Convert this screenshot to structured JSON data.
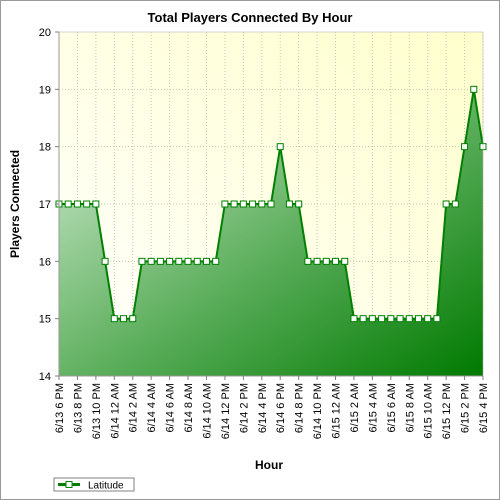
{
  "chart_data": {
    "type": "area",
    "title": "Total Players Connected By Hour",
    "xlabel": "Hour",
    "ylabel": "Players Connected",
    "ylim": [
      14,
      20
    ],
    "yticks": [
      "14",
      "15",
      "16",
      "17",
      "18",
      "19",
      "20"
    ],
    "tick_labels": [
      "6/13 6 PM",
      "6/13 8 PM",
      "6/13 10 PM",
      "6/14 12 AM",
      "6/14 2 AM",
      "6/14 4 AM",
      "6/14 6 AM",
      "6/14 8 AM",
      "6/14 10 AM",
      "6/14 12 PM",
      "6/14 2 PM",
      "6/14 4 PM",
      "6/14 6 PM",
      "6/14 8 PM",
      "6/14 10 PM",
      "6/15 12 AM",
      "6/15 2 AM",
      "6/15 4 AM",
      "6/15 6 AM",
      "6/15 8 AM",
      "6/15 10 AM",
      "6/15 12 PM",
      "6/15 2 PM",
      "6/15 4 PM"
    ],
    "grid": true,
    "legend_position": "bottom-left",
    "series": [
      {
        "name": "Latitude",
        "color": "#008000",
        "values": [
          17,
          17,
          17,
          17,
          17,
          16,
          15,
          15,
          15,
          16,
          16,
          16,
          16,
          16,
          16,
          16,
          16,
          16,
          17,
          17,
          17,
          17,
          17,
          17,
          18,
          17,
          17,
          16,
          16,
          16,
          16,
          16,
          15,
          15,
          15,
          15,
          15,
          15,
          15,
          15,
          15,
          15,
          17,
          17,
          18,
          19,
          18
        ]
      }
    ]
  }
}
